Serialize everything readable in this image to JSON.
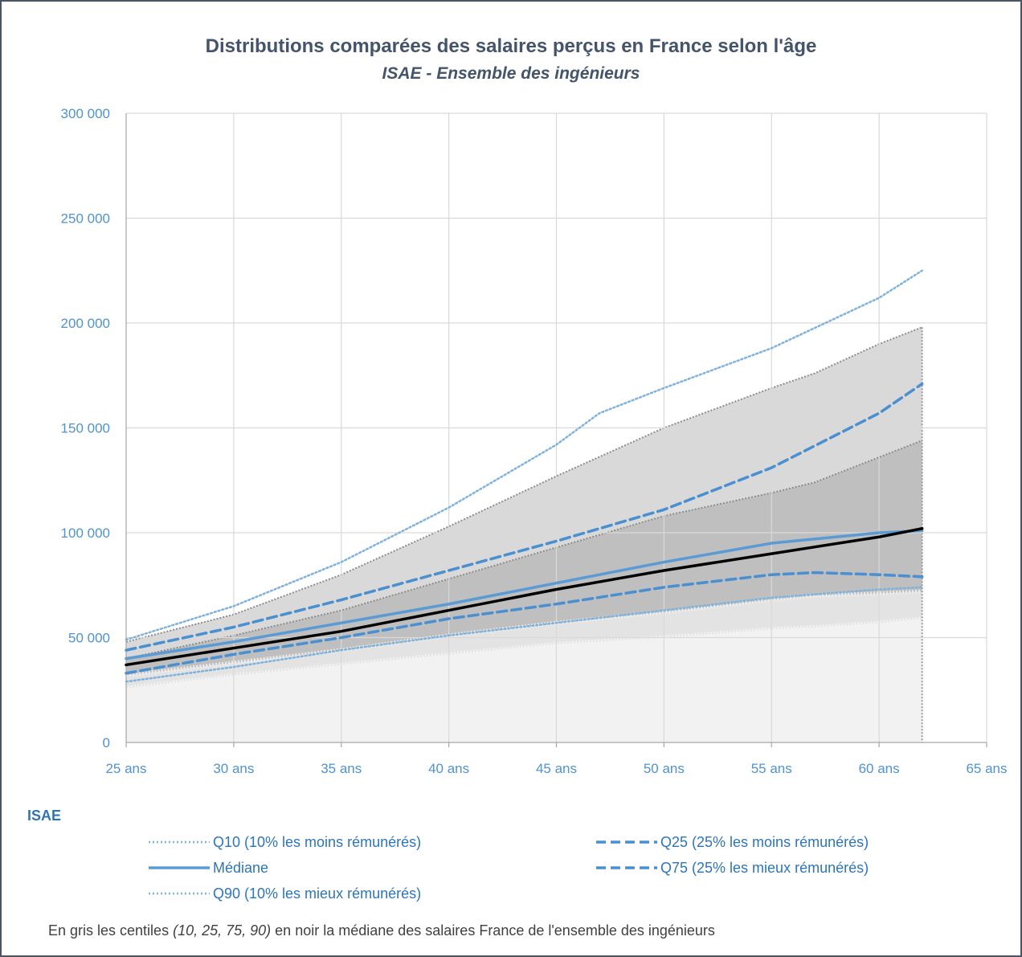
{
  "chart_data": {
    "type": "line",
    "title": "Distributions  comparées des salaires perçus en France selon l'âge",
    "subtitle": "ISAE  - Ensemble des ingénieurs",
    "x_ticks": [
      "25  ans",
      "30  ans",
      "35  ans",
      "40  ans",
      "45  ans",
      "50  ans",
      "55  ans",
      "60  ans",
      "65  ans"
    ],
    "y_ticks": [
      "0",
      "50 000",
      "100 000",
      "150 000",
      "200 000",
      "250 000",
      "300 000"
    ],
    "xlim": [
      25,
      65
    ],
    "ylim": [
      0,
      300000
    ],
    "grid": true,
    "france_bands": {
      "x": [
        25,
        30,
        35,
        40,
        45,
        50,
        55,
        57,
        60,
        62
      ],
      "p10": [
        27000,
        33000,
        38000,
        43000,
        48000,
        51000,
        55000,
        56000,
        58000,
        60000
      ],
      "p25": [
        32000,
        38000,
        44000,
        51000,
        57000,
        62000,
        68000,
        70000,
        71000,
        72000
      ],
      "p75": [
        40000,
        51000,
        63000,
        78000,
        93000,
        108000,
        119000,
        124000,
        136000,
        144000
      ],
      "p90": [
        48000,
        61000,
        80000,
        103000,
        127000,
        150000,
        169000,
        176000,
        190000,
        198000
      ]
    },
    "france_median": {
      "x": [
        25,
        30,
        35,
        40,
        45,
        50,
        55,
        60,
        62
      ],
      "values": [
        37000,
        45000,
        53000,
        63000,
        73000,
        82000,
        90000,
        98000,
        102000
      ]
    },
    "series": [
      {
        "name": "Q10 (10% les moins rémunérés)",
        "style": "dotted",
        "color": "#7fb2dc",
        "x": [
          25,
          30,
          35,
          40,
          45,
          50,
          55,
          60,
          62
        ],
        "values": [
          29000,
          36000,
          44000,
          51000,
          57000,
          63000,
          69000,
          73000,
          74000
        ]
      },
      {
        "name": "Q25 (25% les moins rémunérés)",
        "style": "dashed",
        "color": "#4a8fd0",
        "x": [
          25,
          30,
          35,
          40,
          45,
          50,
          55,
          57,
          60,
          62
        ],
        "values": [
          33000,
          42000,
          50000,
          59000,
          66000,
          74000,
          80000,
          81000,
          80000,
          79000
        ]
      },
      {
        "name": "Médiane",
        "style": "solid",
        "color": "#5b9bd5",
        "x": [
          25,
          30,
          35,
          40,
          45,
          50,
          55,
          60,
          62
        ],
        "values": [
          40000,
          48000,
          57000,
          66000,
          76000,
          86000,
          95000,
          100000,
          101000
        ]
      },
      {
        "name": "Q75 (25% les mieux rémunérés)",
        "style": "dashed",
        "color": "#4a8fd0",
        "x": [
          25,
          30,
          35,
          40,
          45,
          50,
          55,
          60,
          62
        ],
        "values": [
          44000,
          55000,
          68000,
          82000,
          96000,
          111000,
          131000,
          157000,
          171000
        ]
      },
      {
        "name": "Q90 (10% les mieux rémunérés)",
        "style": "dotted",
        "color": "#7fb2dc",
        "x": [
          25,
          30,
          35,
          40,
          45,
          47,
          50,
          55,
          60,
          62
        ],
        "values": [
          49000,
          65000,
          86000,
          112000,
          142000,
          157000,
          169000,
          188000,
          212000,
          225000
        ]
      }
    ]
  },
  "legend": {
    "title": "ISAE",
    "items": [
      {
        "label": "Q10 (10% les moins rémunérés)",
        "style": "dotted"
      },
      {
        "label": "Q25 (25% les moins rémunérés)",
        "style": "dashed"
      },
      {
        "label": "Médiane",
        "style": "solid"
      },
      {
        "label": "Q75 (25% les mieux rémunérés)",
        "style": "dashed"
      },
      {
        "label": "Q90 (10% les mieux rémunérés)",
        "style": "dotted"
      }
    ]
  },
  "footnote": {
    "part1": "En gris les centiles ",
    "part2": "(10, 25, 75, 90)",
    "part3": " en noir la médiane des salaires France de l'ensemble des ingénieurs"
  }
}
